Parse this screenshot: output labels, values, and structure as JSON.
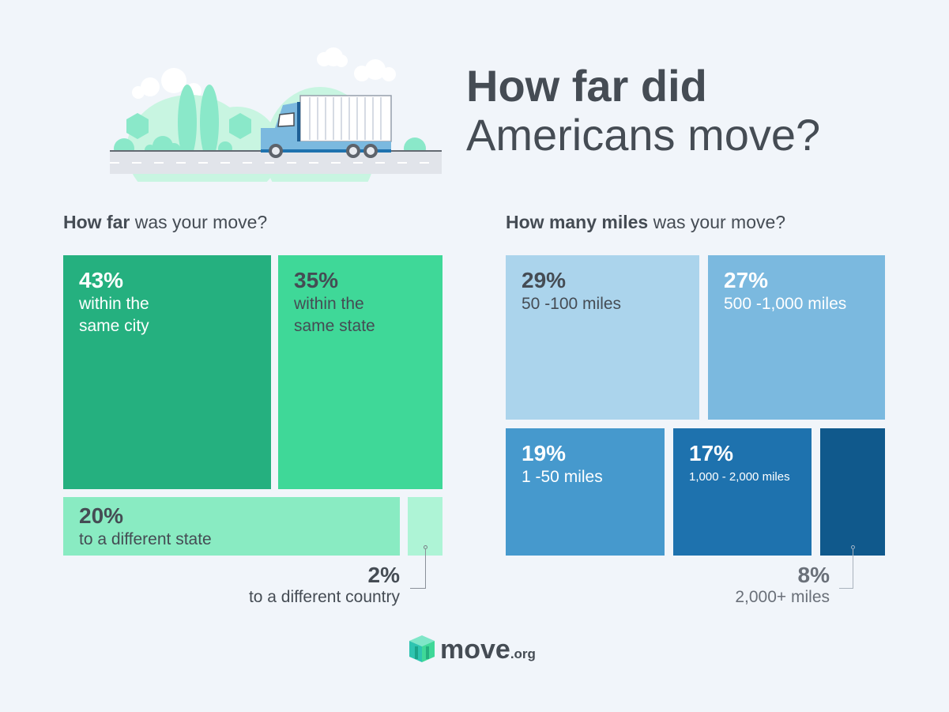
{
  "title": {
    "line1": "How far did",
    "line2": "Americans move?"
  },
  "chart_data": [
    {
      "type": "treemap",
      "title_bold": "How far",
      "title_rest": " was your move?",
      "items": [
        {
          "pct": "43%",
          "value": 43,
          "label": "within the same city",
          "color": "#25b07f"
        },
        {
          "pct": "35%",
          "value": 35,
          "label": "within the same state",
          "color": "#3fd898"
        },
        {
          "pct": "20%",
          "value": 20,
          "label": "to a different state",
          "color": "#89ebc2"
        },
        {
          "pct": "2%",
          "value": 2,
          "label": "to a different country",
          "color": "#aef4d6"
        }
      ]
    },
    {
      "type": "treemap",
      "title_bold": "How many miles",
      "title_rest": " was your move?",
      "items": [
        {
          "pct": "29%",
          "value": 29,
          "label": "50 -100 miles",
          "color": "#abd4ec"
        },
        {
          "pct": "27%",
          "value": 27,
          "label": "500 -1,000 miles",
          "color": "#7bb9df"
        },
        {
          "pct": "19%",
          "value": 19,
          "label": "1 -50 miles",
          "color": "#4699cd"
        },
        {
          "pct": "17%",
          "value": 17,
          "label": "1,000 - 2,000 miles",
          "color": "#1e72ae"
        },
        {
          "pct": "8%",
          "value": 8,
          "label": "2,000+ miles",
          "color": "#10598c"
        }
      ]
    }
  ],
  "logo": {
    "text": "move",
    "suffix": ".org"
  }
}
